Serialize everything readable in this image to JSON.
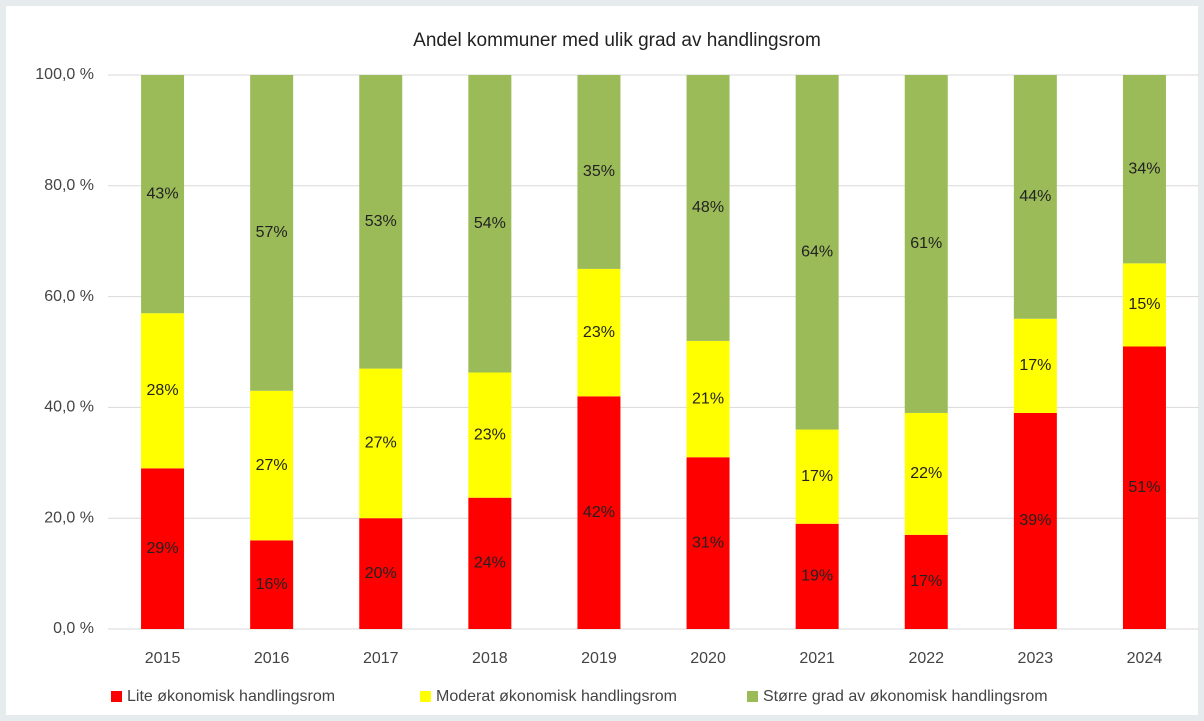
{
  "chart_data": {
    "type": "stacked_bar",
    "title": "Andel kommuner med ulik grad av handlingsrom",
    "categories": [
      "2015",
      "2016",
      "2017",
      "2018",
      "2019",
      "2020",
      "2021",
      "2022",
      "2023",
      "2024"
    ],
    "series": [
      {
        "name": "Lite økonomisk handlingsrom",
        "color": "#ff0000",
        "values": [
          29,
          16,
          20,
          23.7,
          42,
          31,
          19,
          17,
          39,
          51
        ],
        "value_labels": [
          "29%",
          "16%",
          "20%",
          "24%",
          "42%",
          "31%",
          "19%",
          "17%",
          "39%",
          "51%"
        ]
      },
      {
        "name": "Moderat økonomisk handlingsrom",
        "color": "#ffff00",
        "values": [
          28,
          27,
          27,
          22.6,
          23,
          21,
          17,
          22,
          17,
          15
        ],
        "value_labels": [
          "28%",
          "27%",
          "27%",
          "23%",
          "23%",
          "21%",
          "17%",
          "22%",
          "17%",
          "15%"
        ]
      },
      {
        "name": "Større grad av økonomisk handlingsrom",
        "color": "#9bbb59",
        "values": [
          43,
          57,
          53,
          53.7,
          35,
          48,
          64,
          61,
          44,
          34
        ],
        "value_labels": [
          "43%",
          "57%",
          "53%",
          "54%",
          "35%",
          "48%",
          "64%",
          "61%",
          "44%",
          "34%"
        ]
      }
    ],
    "ylim": [
      0,
      100
    ],
    "yticks": [
      {
        "value": 0,
        "label": "0,0 %"
      },
      {
        "value": 20,
        "label": "20,0 %"
      },
      {
        "value": 40,
        "label": "40,0 %"
      },
      {
        "value": 60,
        "label": "60,0 %"
      },
      {
        "value": 80,
        "label": "80,0 %"
      },
      {
        "value": 100,
        "label": "100,0 %"
      }
    ],
    "grid": true,
    "legend": "bottom"
  }
}
